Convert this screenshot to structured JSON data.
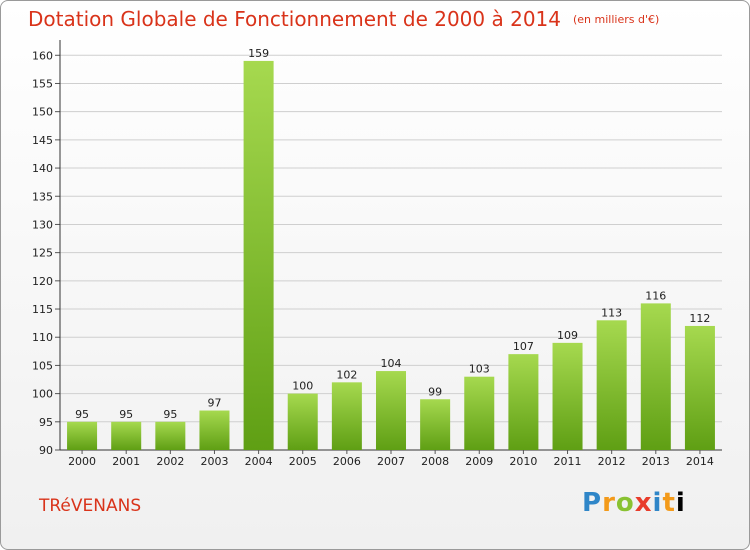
{
  "chart_data": {
    "type": "bar",
    "title": "Dotation Globale de Fonctionnement de 2000 à 2014",
    "units": "(en milliers d'€)",
    "categories": [
      "2000",
      "2001",
      "2002",
      "2003",
      "2004",
      "2005",
      "2006",
      "2007",
      "2008",
      "2009",
      "2010",
      "2011",
      "2012",
      "2013",
      "2014"
    ],
    "values": [
      95,
      95,
      95,
      97,
      159,
      100,
      102,
      104,
      99,
      103,
      107,
      109,
      113,
      116,
      112
    ],
    "ylim": [
      90,
      162
    ],
    "yticks": [
      90,
      95,
      100,
      105,
      110,
      115,
      120,
      125,
      130,
      135,
      140,
      145,
      150,
      155,
      160
    ],
    "grid": true,
    "bar_color": "#7cc42e"
  },
  "commune": "TRéVENANS",
  "logo": {
    "letters": [
      "P",
      "r",
      "o",
      "x",
      "i",
      "t",
      "i"
    ]
  }
}
